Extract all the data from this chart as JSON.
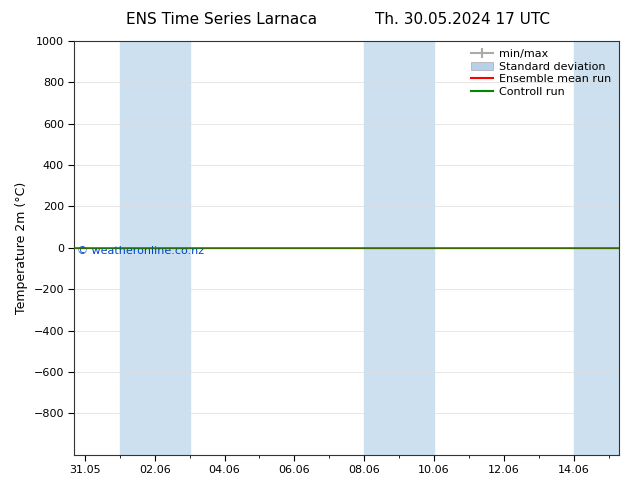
{
  "title_left": "ENS Time Series Larnaca",
  "title_right": "Th. 30.05.2024 17 UTC",
  "ylabel": "Temperature 2m (°C)",
  "xlabel": "",
  "ylim_top": -1000,
  "ylim_bottom": 1000,
  "yticks": [
    -800,
    -600,
    -400,
    -200,
    0,
    200,
    400,
    600,
    800,
    1000
  ],
  "xtick_labels": [
    "31.05",
    "02.06",
    "04.06",
    "06.06",
    "08.06",
    "10.06",
    "12.06",
    "14.06"
  ],
  "xtick_positions": [
    0,
    2,
    4,
    6,
    8,
    10,
    12,
    14
  ],
  "x_min": -0.3,
  "x_max": 15.3,
  "shaded_bands": [
    [
      1,
      3
    ],
    [
      8,
      9
    ],
    [
      9,
      10
    ],
    [
      14,
      15.3
    ]
  ],
  "shaded_color": "#cce0f0",
  "background_color": "#ffffff",
  "plot_bg_color": "#ffffff",
  "line_color_control": "#008800",
  "line_color_ensemble": "#ff0000",
  "watermark": "© weatheronline.co.nz",
  "watermark_color": "#0044cc",
  "legend_items": [
    {
      "label": "min/max",
      "color": "#aaaaaa"
    },
    {
      "label": "Standard deviation",
      "color": "#b8d0e8"
    },
    {
      "label": "Ensemble mean run",
      "color": "#ff0000"
    },
    {
      "label": "Controll run",
      "color": "#008800"
    }
  ],
  "title_fontsize": 11,
  "axis_label_fontsize": 9,
  "tick_fontsize": 8,
  "legend_fontsize": 8
}
